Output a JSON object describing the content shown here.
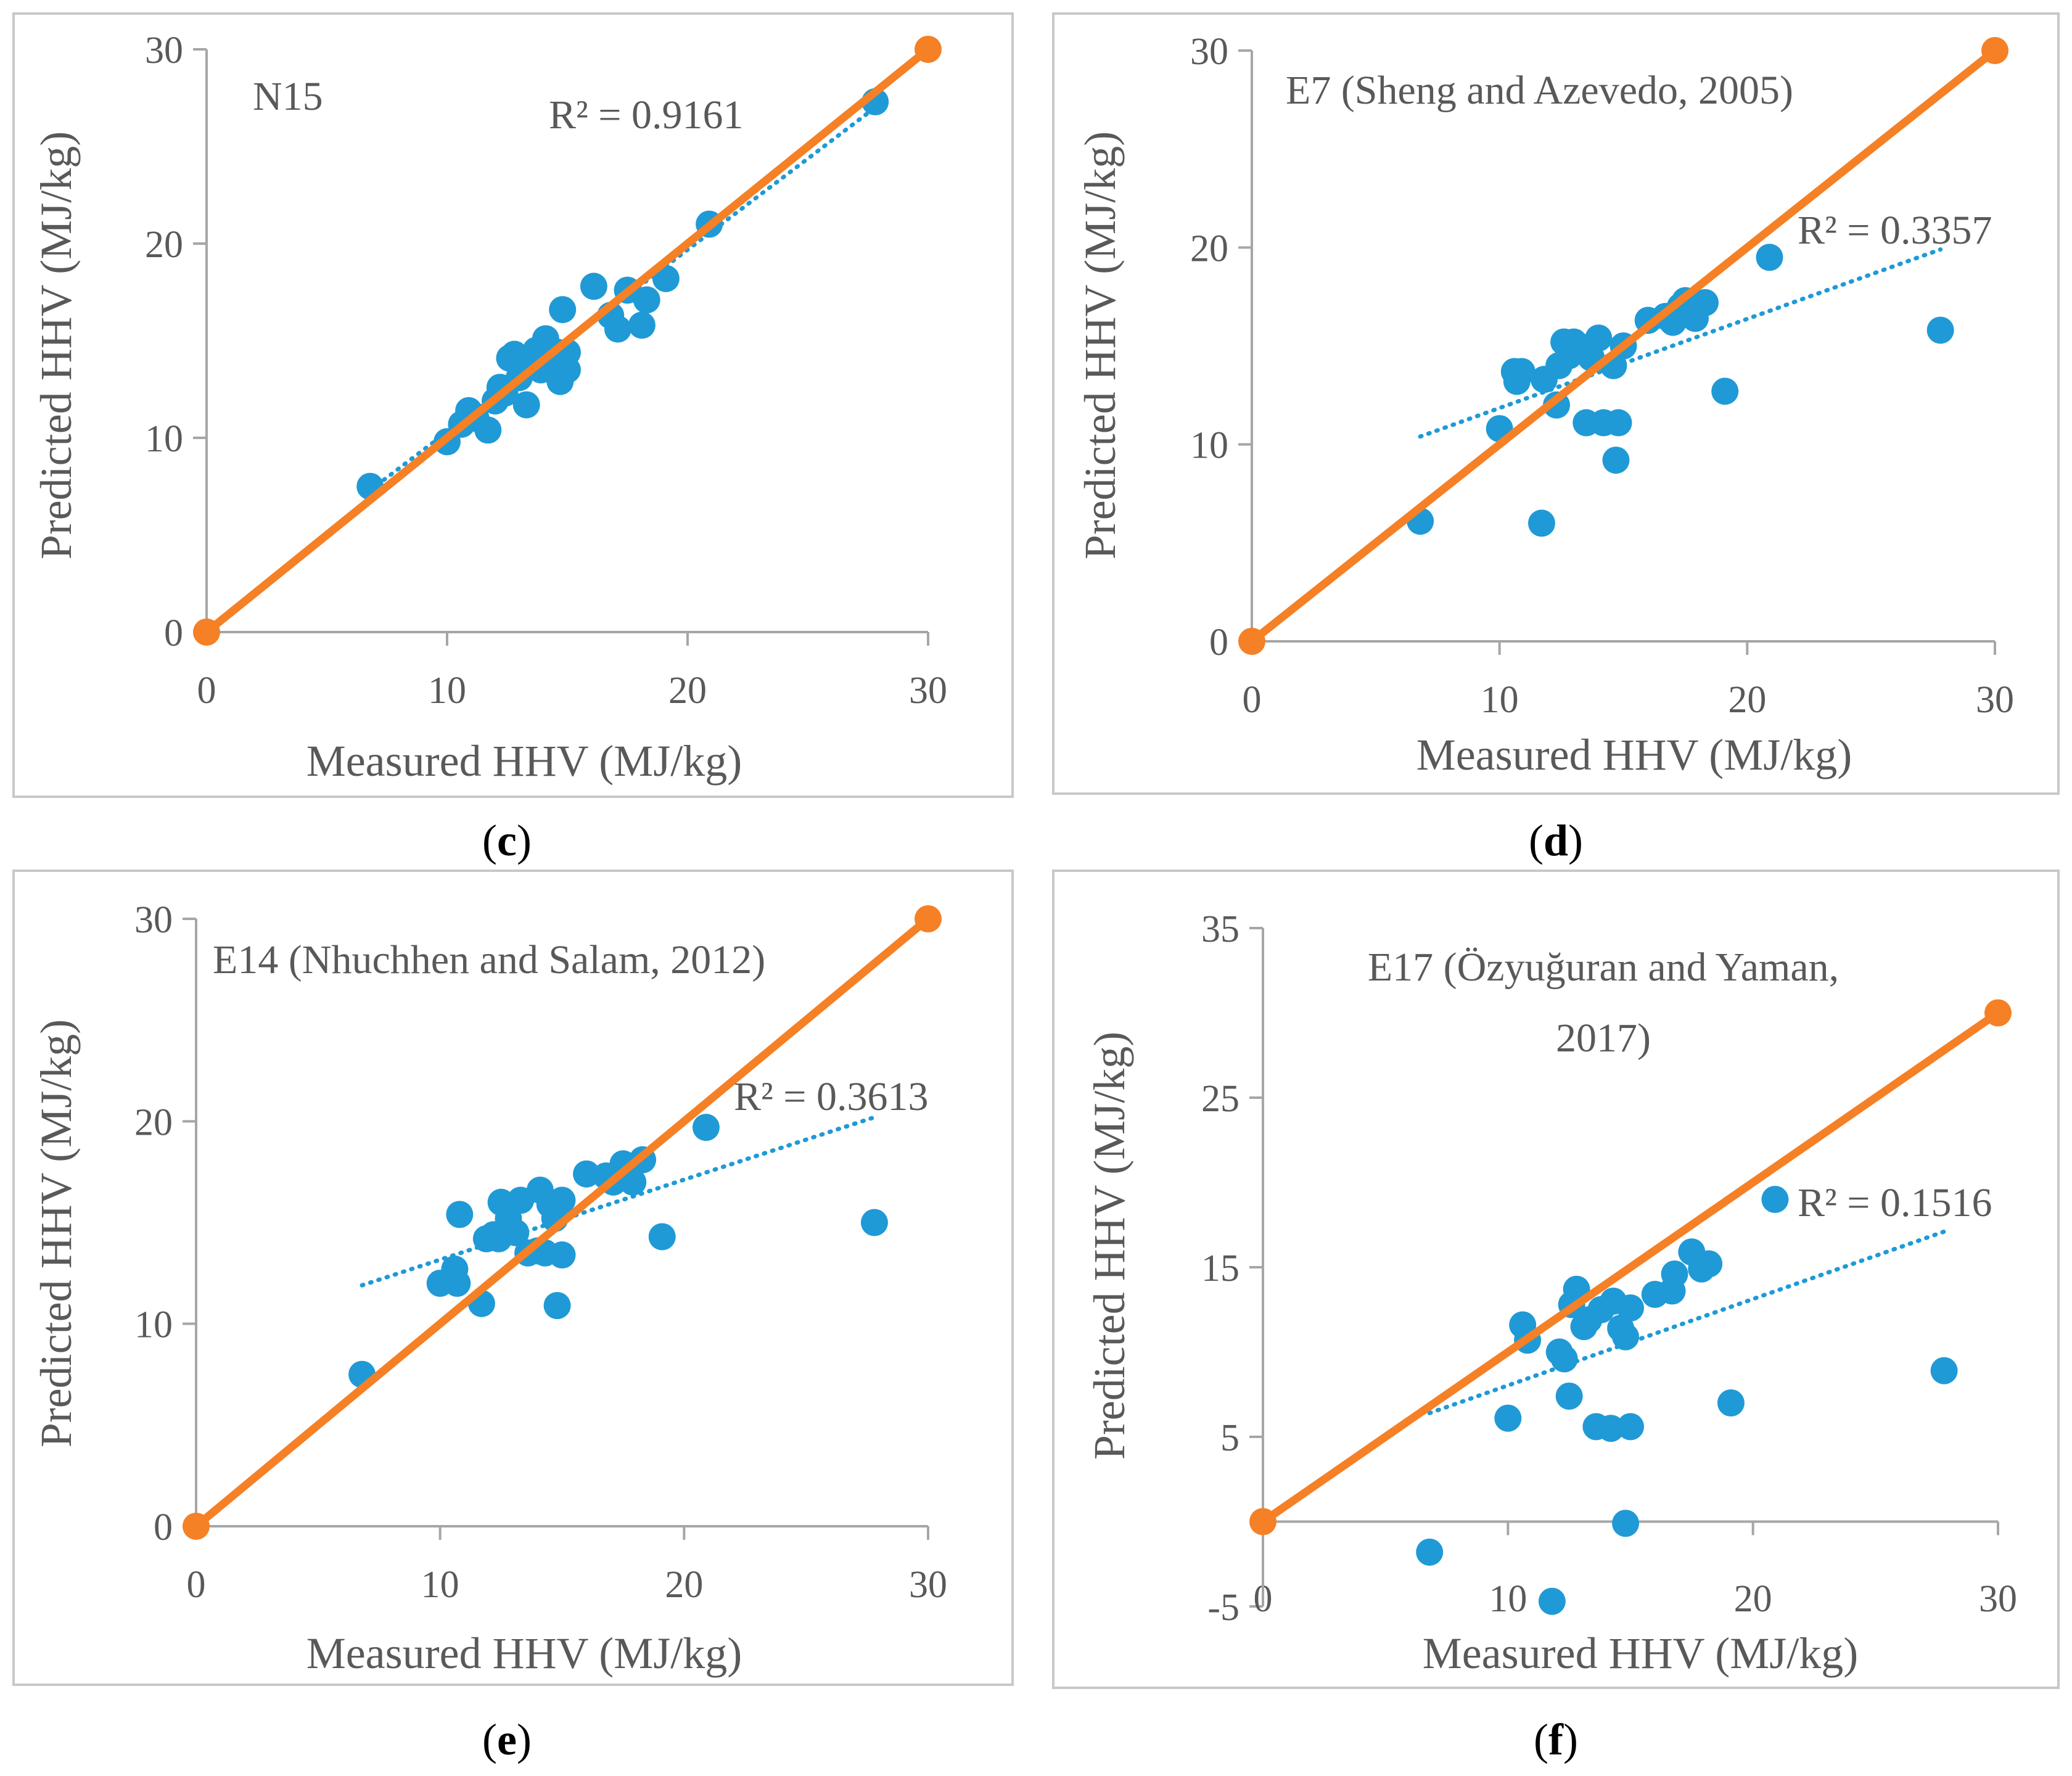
{
  "colors": {
    "scatter": "#1f9ad6",
    "identity_line": "#f58025",
    "axis": "#a6a6a6",
    "panel_border": "#c8c8c8",
    "text": "#595959"
  },
  "chart_data": [
    {
      "panel": "c",
      "type": "scatter",
      "title": "N15",
      "xlabel": "Measured HHV (MJ/kg)",
      "ylabel": "Predicted HHV (MJ/kg)",
      "xlim": [
        0,
        30
      ],
      "ylim": [
        0,
        30
      ],
      "xticks": [
        "0",
        "10",
        "20",
        "30"
      ],
      "yticks": [
        "0",
        "10",
        "20",
        "30"
      ],
      "r2_label": "R² = 0.9161",
      "points": [
        [
          6.8,
          7.5
        ],
        [
          10,
          9.8
        ],
        [
          10.6,
          10.7
        ],
        [
          10.9,
          11.4
        ],
        [
          11.2,
          11
        ],
        [
          11.7,
          10.4
        ],
        [
          12,
          11.9
        ],
        [
          12.2,
          12.6
        ],
        [
          12.4,
          12.3
        ],
        [
          12.6,
          14.1
        ],
        [
          12.8,
          14.3
        ],
        [
          13,
          13.1
        ],
        [
          13.2,
          13.7
        ],
        [
          13.3,
          11.7
        ],
        [
          13.5,
          14
        ],
        [
          13.7,
          14.5
        ],
        [
          13.9,
          13.5
        ],
        [
          14.1,
          15.1
        ],
        [
          14.3,
          14.1
        ],
        [
          14.6,
          14.4
        ],
        [
          14.8,
          16.6
        ],
        [
          14.7,
          12.9
        ],
        [
          15,
          13.5
        ],
        [
          15,
          14.4
        ],
        [
          16.1,
          17.8
        ],
        [
          16.8,
          16.3
        ],
        [
          17.1,
          15.6
        ],
        [
          17.5,
          17.6
        ],
        [
          18.1,
          15.8
        ],
        [
          18.3,
          17.1
        ],
        [
          19.1,
          18.2
        ],
        [
          20.9,
          21
        ],
        [
          27.8,
          27.3
        ]
      ],
      "trend": [
        [
          6.8,
          7.3
        ],
        [
          27.8,
          27
        ]
      ],
      "identity": [
        [
          0,
          0
        ],
        [
          30,
          30
        ]
      ]
    },
    {
      "panel": "d",
      "type": "scatter",
      "title": "E7 (Sheng and Azevedo, 2005)",
      "xlabel": "Measured HHV (MJ/kg)",
      "ylabel": "Predicted HHV (MJ/kg)",
      "xlim": [
        0,
        30
      ],
      "ylim": [
        0,
        30
      ],
      "xticks": [
        "0",
        "10",
        "20",
        "30"
      ],
      "yticks": [
        "0",
        "10",
        "20",
        "30"
      ],
      "r2_label": "R² = 0.3357",
      "points": [
        [
          6.8,
          6.1
        ],
        [
          10,
          10.8
        ],
        [
          10.6,
          13.7
        ],
        [
          10.7,
          13.2
        ],
        [
          10.9,
          13.7
        ],
        [
          11.7,
          6
        ],
        [
          11.8,
          13.3
        ],
        [
          12.3,
          12
        ],
        [
          12.4,
          14
        ],
        [
          12.6,
          15.2
        ],
        [
          12.8,
          14.5
        ],
        [
          13,
          15.2
        ],
        [
          13.2,
          15
        ],
        [
          13.5,
          11.1
        ],
        [
          13.7,
          14.4
        ],
        [
          14,
          15.4
        ],
        [
          14.2,
          11.1
        ],
        [
          14.6,
          14
        ],
        [
          14.7,
          9.2
        ],
        [
          14.8,
          11.1
        ],
        [
          15,
          15
        ],
        [
          16,
          16.3
        ],
        [
          16.7,
          16.5
        ],
        [
          17,
          16.2
        ],
        [
          17.3,
          17
        ],
        [
          17.5,
          17.3
        ],
        [
          17.9,
          16.4
        ],
        [
          18.3,
          17.2
        ],
        [
          19.1,
          12.7
        ],
        [
          20.9,
          19.5
        ],
        [
          27.8,
          15.8
        ]
      ],
      "trend": [
        [
          6.8,
          10.4
        ],
        [
          27.8,
          19.9
        ]
      ],
      "identity": [
        [
          0,
          0
        ],
        [
          30,
          30
        ]
      ]
    },
    {
      "panel": "e",
      "type": "scatter",
      "title": "E14 (Nhuchhen and Salam, 2012)",
      "xlabel": "Measured HHV (MJ/kg)",
      "ylabel": "Predicted HHV (MJ/kg)",
      "xlim": [
        0,
        30
      ],
      "ylim": [
        0,
        30
      ],
      "xticks": [
        "0",
        "10",
        "20",
        "30"
      ],
      "yticks": [
        "0",
        "10",
        "20",
        "30"
      ],
      "r2_label": "R² = 0.3613",
      "points": [
        [
          6.8,
          7.5
        ],
        [
          10,
          12
        ],
        [
          10.6,
          12.7
        ],
        [
          10.7,
          12
        ],
        [
          10.8,
          15.4
        ],
        [
          11.7,
          11
        ],
        [
          11.9,
          14.2
        ],
        [
          12.2,
          14.4
        ],
        [
          12.4,
          14.2
        ],
        [
          12.5,
          16
        ],
        [
          12.8,
          15.2
        ],
        [
          13.1,
          14.5
        ],
        [
          13.3,
          16.1
        ],
        [
          13.6,
          13.5
        ],
        [
          14,
          13.6
        ],
        [
          14.1,
          16.6
        ],
        [
          14.3,
          13.5
        ],
        [
          14.5,
          15.9
        ],
        [
          14.7,
          15.2
        ],
        [
          14.8,
          10.9
        ],
        [
          15,
          16.1
        ],
        [
          15,
          13.4
        ],
        [
          16,
          17.4
        ],
        [
          16.8,
          17.3
        ],
        [
          17.1,
          17
        ],
        [
          17.5,
          17.9
        ],
        [
          17.9,
          17
        ],
        [
          18.3,
          18.1
        ],
        [
          19.1,
          14.3
        ],
        [
          20.9,
          19.7
        ],
        [
          27.8,
          15
        ]
      ],
      "trend": [
        [
          6.8,
          11.9
        ],
        [
          27.8,
          20.2
        ]
      ],
      "identity": [
        [
          0,
          0
        ],
        [
          30,
          30
        ]
      ]
    },
    {
      "panel": "f",
      "type": "scatter",
      "title_lines": [
        "E17 (Özyuğuran and Yaman,",
        "2017)"
      ],
      "xlabel": "Measured HHV (MJ/kg)",
      "ylabel": "Predicted HHV (MJ/kg)",
      "xlim": [
        0,
        30
      ],
      "ylim": [
        -5,
        35
      ],
      "xticks": [
        "0",
        "10",
        "20",
        "30"
      ],
      "yticks": [
        "-5",
        "5",
        "15",
        "25",
        "35"
      ],
      "r2_label": "R² = 0.1516",
      "points": [
        [
          6.8,
          -1.8
        ],
        [
          10,
          6.1
        ],
        [
          10.6,
          11.6
        ],
        [
          10.8,
          10.7
        ],
        [
          11.8,
          -4.7
        ],
        [
          12.1,
          10
        ],
        [
          12.3,
          9.6
        ],
        [
          12.5,
          7.4
        ],
        [
          12.6,
          12.8
        ],
        [
          12.8,
          13.7
        ],
        [
          13.1,
          11.5
        ],
        [
          13.3,
          11.9
        ],
        [
          13.6,
          5.6
        ],
        [
          13.8,
          12.5
        ],
        [
          14.2,
          5.5
        ],
        [
          14.3,
          13
        ],
        [
          14.6,
          11.4
        ],
        [
          14.8,
          10.9
        ],
        [
          14.8,
          -0.1
        ],
        [
          15,
          12.6
        ],
        [
          15,
          5.6
        ],
        [
          16,
          13.4
        ],
        [
          16.7,
          13.6
        ],
        [
          16.8,
          14.6
        ],
        [
          17.5,
          15.9
        ],
        [
          17.9,
          14.9
        ],
        [
          18.2,
          15.2
        ],
        [
          19.1,
          7
        ],
        [
          20.9,
          19
        ],
        [
          27.8,
          8.9
        ]
      ],
      "trend": [
        [
          6.8,
          6.4
        ],
        [
          27.8,
          17.1
        ]
      ],
      "identity": [
        [
          0,
          0
        ],
        [
          30,
          30
        ]
      ]
    }
  ],
  "captions": {
    "c": {
      "open": "(",
      "letter": "c",
      "close": ")"
    },
    "d": {
      "open": "(",
      "letter": "d",
      "close": ")"
    },
    "e": {
      "open": "(",
      "letter": "e",
      "close": ")"
    },
    "f": {
      "open": "(",
      "letter": "f",
      "close": ")"
    }
  }
}
